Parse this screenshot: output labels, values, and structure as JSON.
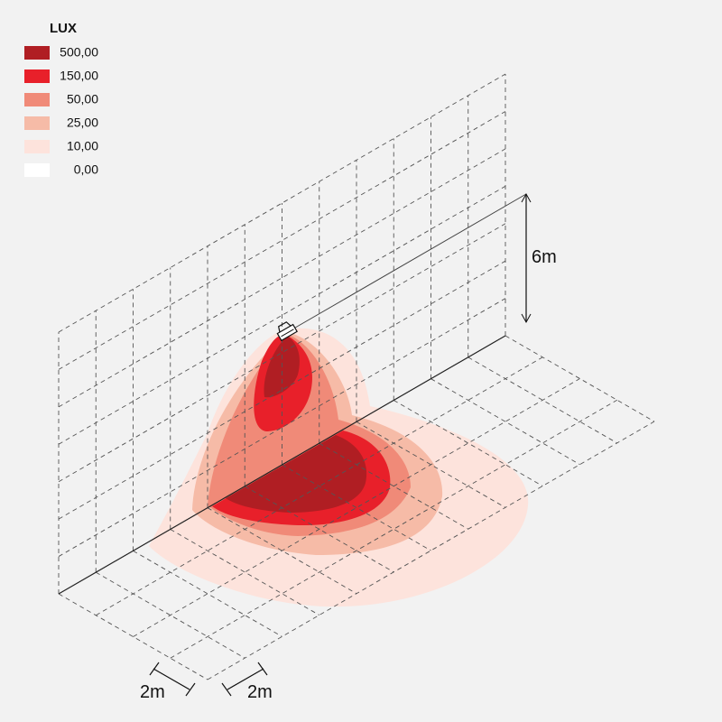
{
  "legend": {
    "title": "LUX",
    "items": [
      {
        "label": "500,00",
        "color": "#b01e23"
      },
      {
        "label": "150,00",
        "color": "#e8202a"
      },
      {
        "label": "50,00",
        "color": "#f08a78"
      },
      {
        "label": "25,00",
        "color": "#f6bba7"
      },
      {
        "label": "10,00",
        "color": "#fde3dc"
      },
      {
        "label": "0,00",
        "color": "#ffffff"
      }
    ]
  },
  "dimensions": {
    "height": "6m",
    "grid_x": "2m",
    "grid_y": "2m"
  }
}
